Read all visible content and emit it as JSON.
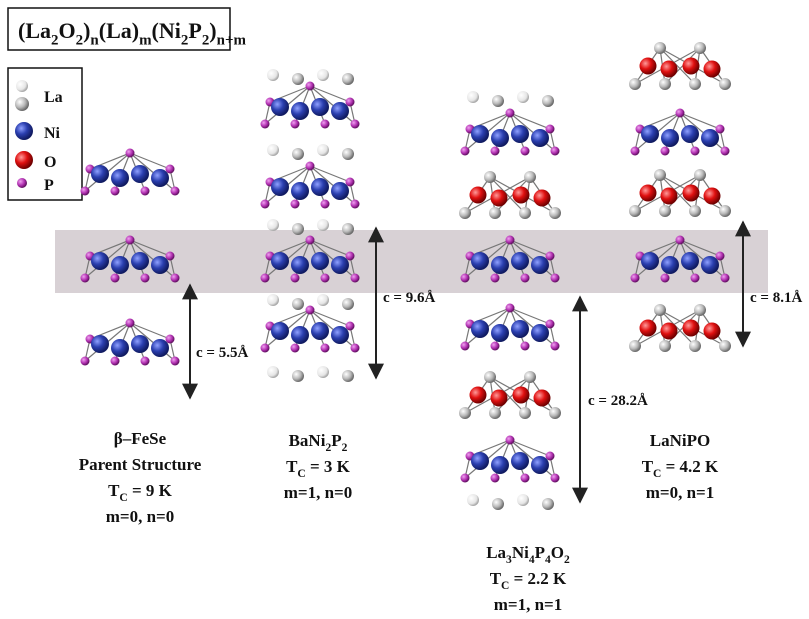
{
  "title": [
    "(La",
    "2",
    "O",
    "2",
    ")",
    "n",
    "(La)",
    "m",
    "(Ni",
    "2",
    "P",
    "2",
    ")",
    "n+m"
  ],
  "legend": [
    "La",
    "Ni",
    "O",
    "P"
  ],
  "spacings": [
    "c = 5.5Å",
    "c = 9.6Å",
    "c = 28.2Å",
    "c = 8.1Å"
  ],
  "columns": [
    {
      "lines": [
        [
          "β–FeSe"
        ],
        [
          "Parent Structure"
        ],
        [
          "T",
          "C",
          " = 9 K"
        ],
        [
          "m=0, n=0"
        ]
      ]
    },
    {
      "lines": [
        [
          "BaNi",
          "2",
          "P",
          "2"
        ],
        [
          "T",
          "C",
          " = 3 K"
        ],
        [
          "m=1, n=0"
        ]
      ]
    },
    {
      "lines": [
        [
          "La",
          "3",
          "Ni",
          "4",
          "P",
          "4",
          "O",
          "2"
        ],
        [
          "T",
          "C",
          " = 2.2 K"
        ],
        [
          "m=1, n=1"
        ]
      ]
    },
    {
      "lines": [
        [
          "LaNiPO"
        ],
        [
          "T",
          "C",
          " = 4.2 K"
        ],
        [
          "m=0, n=1"
        ]
      ]
    }
  ]
}
